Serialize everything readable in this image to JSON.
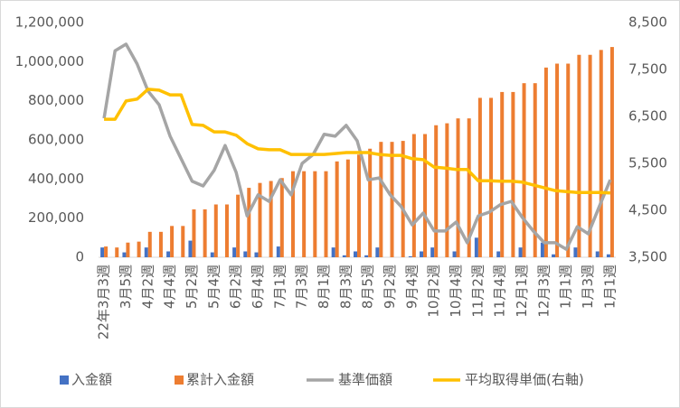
{
  "chart_data": {
    "type": "bar-line",
    "categories": [
      "22年3月3週",
      null,
      "3月5週",
      null,
      "4月2週",
      null,
      "4月4週",
      null,
      "5月2週",
      null,
      "5月4週",
      null,
      "6月2週",
      null,
      "6月4週",
      null,
      "7月1週",
      null,
      "7月3週",
      null,
      "8月1週",
      null,
      "8月3週",
      null,
      "8月5週",
      null,
      "9月2週",
      null,
      "9月4週",
      null,
      "10月2週",
      null,
      "10月4週",
      null,
      "11月2週",
      null,
      "11月4週",
      null,
      "12月1週",
      null,
      "12月3週",
      null,
      "1月1週",
      null,
      "1月3週",
      null,
      "1月1週"
    ],
    "series": [
      {
        "name": "入金額",
        "type": "bar",
        "color": "#4472c4",
        "values": [
          50000,
          0,
          25000,
          0,
          50000,
          0,
          30000,
          0,
          85000,
          0,
          25000,
          0,
          50000,
          30000,
          25000,
          0,
          55000,
          0,
          0,
          0,
          0,
          50000,
          10000,
          30000,
          10000,
          50000,
          0,
          0,
          5000,
          30000,
          50000,
          0,
          30000,
          0,
          100000,
          0,
          30000,
          0,
          50000,
          0,
          75000,
          15000,
          0,
          50000,
          0,
          30000,
          15000
        ]
      },
      {
        "name": "累計入金額",
        "type": "bar",
        "color": "#ed7d31",
        "values": [
          55000,
          50000,
          75000,
          80000,
          130000,
          130000,
          160000,
          160000,
          245000,
          245000,
          270000,
          270000,
          320000,
          355000,
          380000,
          390000,
          405000,
          440000,
          440000,
          440000,
          440000,
          490000,
          500000,
          525000,
          555000,
          590000,
          590000,
          595000,
          630000,
          630000,
          675000,
          685000,
          710000,
          710000,
          815000,
          815000,
          845000,
          845000,
          890000,
          890000,
          970000,
          990000,
          990000,
          1035000,
          1035000,
          1060000,
          1075000
        ]
      },
      {
        "name": "基準価額",
        "type": "line",
        "axis": "y2",
        "color": "#a5a5a5",
        "values": [
          6460,
          7900,
          8040,
          7620,
          7040,
          6750,
          6080,
          5600,
          5120,
          5020,
          5350,
          5880,
          5310,
          4380,
          4830,
          4690,
          5150,
          4830,
          5500,
          5690,
          6120,
          6080,
          6310,
          5980,
          5150,
          5190,
          4830,
          4580,
          4190,
          4440,
          4060,
          4060,
          4250,
          3810,
          4380,
          4460,
          4620,
          4690,
          4350,
          4060,
          3810,
          3810,
          3670,
          4150,
          4000,
          4580,
          5150
        ]
      },
      {
        "name": "平均取得単価(右軸)",
        "type": "line",
        "axis": "y2",
        "color": "#ffc000",
        "values": [
          6440,
          6440,
          6830,
          6870,
          7080,
          7060,
          6960,
          6960,
          6330,
          6310,
          6170,
          6170,
          6100,
          5920,
          5810,
          5790,
          5790,
          5690,
          5690,
          5690,
          5690,
          5710,
          5730,
          5730,
          5730,
          5690,
          5670,
          5670,
          5600,
          5580,
          5420,
          5400,
          5370,
          5370,
          5130,
          5130,
          5120,
          5120,
          5100,
          5040,
          4980,
          4920,
          4900,
          4880,
          4880,
          4880,
          4870
        ]
      }
    ],
    "ylim": [
      0,
      1200000
    ],
    "yticks": [
      0,
      {
        "value": 200000,
        "label": "200,000"
      },
      {
        "value": 400000,
        "label": "400,000"
      },
      {
        "value": 600000,
        "label": "600,000"
      },
      {
        "value": 800000,
        "label": "800,000"
      },
      {
        "value": 1000000,
        "label": "1,000,000"
      },
      {
        "value": 1200000,
        "label": "1,200,000"
      }
    ],
    "y2lim": [
      3500,
      8500
    ],
    "y2ticks": [
      {
        "value": 3500,
        "label": "3,500"
      },
      {
        "value": 4500,
        "label": "4,500"
      },
      {
        "value": 5500,
        "label": "5,500"
      },
      {
        "value": 6500,
        "label": "6,500"
      },
      {
        "value": 7500,
        "label": "7,500"
      },
      {
        "value": 8500,
        "label": "8,500"
      }
    ],
    "grid": false,
    "legend": "bottom"
  }
}
